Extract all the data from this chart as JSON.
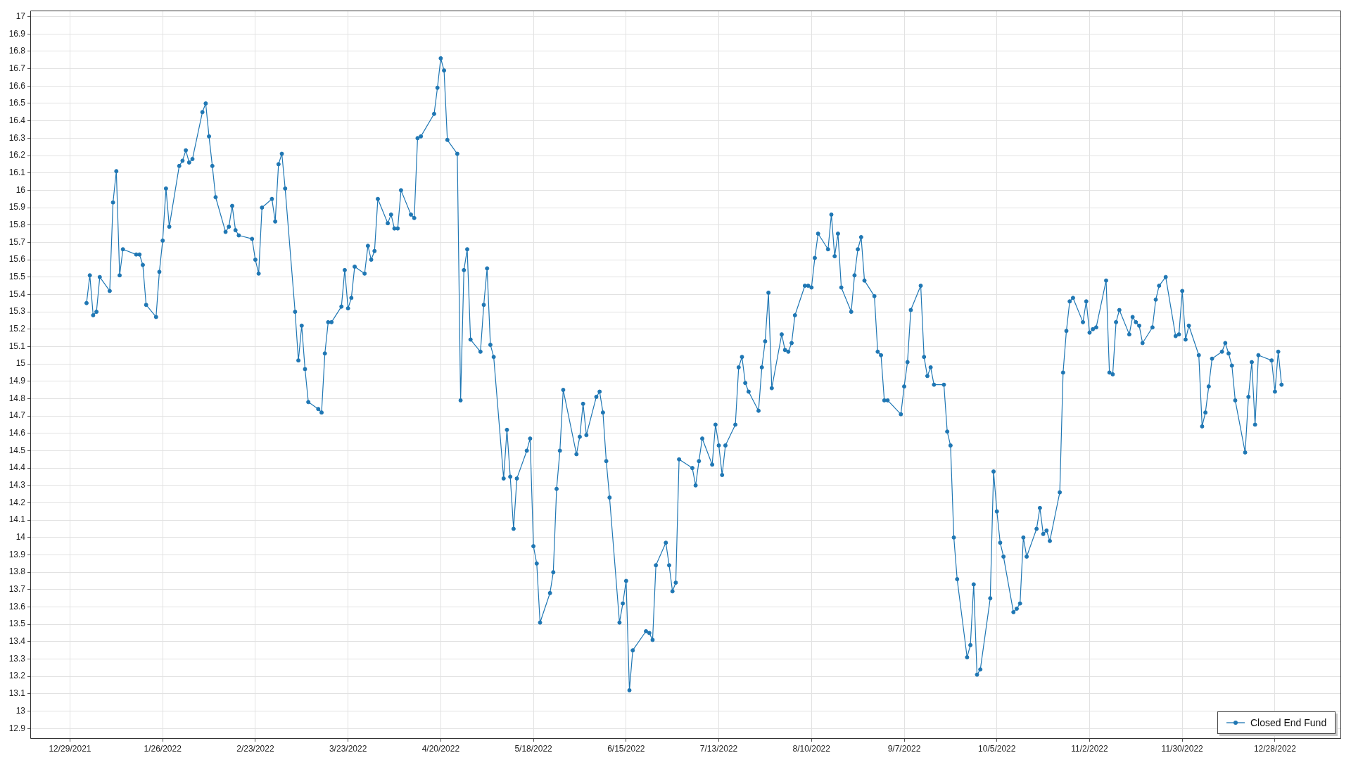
{
  "chart_data": {
    "type": "line",
    "x": [
      "2022-01-03",
      "2022-01-04",
      "2022-01-05",
      "2022-01-06",
      "2022-01-07",
      "2022-01-10",
      "2022-01-11",
      "2022-01-12",
      "2022-01-13",
      "2022-01-14",
      "2022-01-18",
      "2022-01-19",
      "2022-01-20",
      "2022-01-21",
      "2022-01-24",
      "2022-01-25",
      "2022-01-26",
      "2022-01-27",
      "2022-01-28",
      "2022-01-31",
      "2022-02-01",
      "2022-02-02",
      "2022-02-03",
      "2022-02-04",
      "2022-02-07",
      "2022-02-08",
      "2022-02-09",
      "2022-02-10",
      "2022-02-11",
      "2022-02-14",
      "2022-02-15",
      "2022-02-16",
      "2022-02-17",
      "2022-02-18",
      "2022-02-22",
      "2022-02-23",
      "2022-02-24",
      "2022-02-25",
      "2022-02-28",
      "2022-03-01",
      "2022-03-02",
      "2022-03-03",
      "2022-03-04",
      "2022-03-07",
      "2022-03-08",
      "2022-03-09",
      "2022-03-10",
      "2022-03-11",
      "2022-03-14",
      "2022-03-15",
      "2022-03-16",
      "2022-03-17",
      "2022-03-18",
      "2022-03-21",
      "2022-03-22",
      "2022-03-23",
      "2022-03-24",
      "2022-03-25",
      "2022-03-28",
      "2022-03-29",
      "2022-03-30",
      "2022-03-31",
      "2022-04-01",
      "2022-04-04",
      "2022-04-05",
      "2022-04-06",
      "2022-04-07",
      "2022-04-08",
      "2022-04-11",
      "2022-04-12",
      "2022-04-13",
      "2022-04-14",
      "2022-04-18",
      "2022-04-19",
      "2022-04-20",
      "2022-04-21",
      "2022-04-22",
      "2022-04-25",
      "2022-04-26",
      "2022-04-27",
      "2022-04-28",
      "2022-04-29",
      "2022-05-02",
      "2022-05-03",
      "2022-05-04",
      "2022-05-05",
      "2022-05-06",
      "2022-05-09",
      "2022-05-10",
      "2022-05-11",
      "2022-05-12",
      "2022-05-13",
      "2022-05-16",
      "2022-05-17",
      "2022-05-18",
      "2022-05-19",
      "2022-05-20",
      "2022-05-23",
      "2022-05-24",
      "2022-05-25",
      "2022-05-26",
      "2022-05-27",
      "2022-05-31",
      "2022-06-01",
      "2022-06-02",
      "2022-06-03",
      "2022-06-06",
      "2022-06-07",
      "2022-06-08",
      "2022-06-09",
      "2022-06-10",
      "2022-06-13",
      "2022-06-14",
      "2022-06-15",
      "2022-06-16",
      "2022-06-17",
      "2022-06-21",
      "2022-06-22",
      "2022-06-23",
      "2022-06-24",
      "2022-06-27",
      "2022-06-28",
      "2022-06-29",
      "2022-06-30",
      "2022-07-01",
      "2022-07-05",
      "2022-07-06",
      "2022-07-07",
      "2022-07-08",
      "2022-07-11",
      "2022-07-12",
      "2022-07-13",
      "2022-07-14",
      "2022-07-15",
      "2022-07-18",
      "2022-07-19",
      "2022-07-20",
      "2022-07-21",
      "2022-07-22",
      "2022-07-25",
      "2022-07-26",
      "2022-07-27",
      "2022-07-28",
      "2022-07-29",
      "2022-08-01",
      "2022-08-02",
      "2022-08-03",
      "2022-08-04",
      "2022-08-05",
      "2022-08-08",
      "2022-08-09",
      "2022-08-10",
      "2022-08-11",
      "2022-08-12",
      "2022-08-15",
      "2022-08-16",
      "2022-08-17",
      "2022-08-18",
      "2022-08-19",
      "2022-08-22",
      "2022-08-23",
      "2022-08-24",
      "2022-08-25",
      "2022-08-26",
      "2022-08-29",
      "2022-08-30",
      "2022-08-31",
      "2022-09-01",
      "2022-09-02",
      "2022-09-06",
      "2022-09-07",
      "2022-09-08",
      "2022-09-09",
      "2022-09-12",
      "2022-09-13",
      "2022-09-14",
      "2022-09-15",
      "2022-09-16",
      "2022-09-19",
      "2022-09-20",
      "2022-09-21",
      "2022-09-22",
      "2022-09-23",
      "2022-09-26",
      "2022-09-27",
      "2022-09-28",
      "2022-09-29",
      "2022-09-30",
      "2022-10-03",
      "2022-10-04",
      "2022-10-05",
      "2022-10-06",
      "2022-10-07",
      "2022-10-10",
      "2022-10-11",
      "2022-10-12",
      "2022-10-13",
      "2022-10-14",
      "2022-10-17",
      "2022-10-18",
      "2022-10-19",
      "2022-10-20",
      "2022-10-21",
      "2022-10-24",
      "2022-10-25",
      "2022-10-26",
      "2022-10-27",
      "2022-10-28",
      "2022-10-31",
      "2022-11-01",
      "2022-11-02",
      "2022-11-03",
      "2022-11-04",
      "2022-11-07",
      "2022-11-08",
      "2022-11-09",
      "2022-11-10",
      "2022-11-11",
      "2022-11-14",
      "2022-11-15",
      "2022-11-16",
      "2022-11-17",
      "2022-11-18",
      "2022-11-21",
      "2022-11-22",
      "2022-11-23",
      "2022-11-25",
      "2022-11-28",
      "2022-11-29",
      "2022-11-30",
      "2022-12-01",
      "2022-12-02",
      "2022-12-05",
      "2022-12-06",
      "2022-12-07",
      "2022-12-08",
      "2022-12-09",
      "2022-12-12",
      "2022-12-13",
      "2022-12-14",
      "2022-12-15",
      "2022-12-16",
      "2022-12-19",
      "2022-12-20",
      "2022-12-21",
      "2022-12-22",
      "2022-12-23",
      "2022-12-27",
      "2022-12-28",
      "2022-12-29",
      "2022-12-30"
    ],
    "series": [
      {
        "name": "Closed End Fund",
        "color": "#1f77b4",
        "values": [
          15.35,
          15.51,
          15.28,
          15.3,
          15.5,
          15.42,
          15.93,
          16.11,
          15.51,
          15.66,
          15.63,
          15.63,
          15.57,
          15.34,
          15.27,
          15.53,
          15.71,
          16.01,
          15.79,
          16.14,
          16.17,
          16.23,
          16.16,
          16.18,
          16.45,
          16.5,
          16.31,
          16.14,
          15.96,
          15.76,
          15.79,
          15.91,
          15.77,
          15.74,
          15.72,
          15.6,
          15.52,
          15.9,
          15.95,
          15.82,
          16.15,
          16.21,
          16.01,
          15.3,
          15.02,
          15.22,
          14.97,
          14.78,
          14.74,
          14.72,
          15.06,
          15.24,
          15.24,
          15.33,
          15.54,
          15.32,
          15.38,
          15.56,
          15.52,
          15.68,
          15.6,
          15.65,
          15.95,
          15.81,
          15.86,
          15.78,
          15.78,
          16.0,
          15.86,
          15.84,
          16.3,
          16.31,
          16.44,
          16.59,
          16.76,
          16.69,
          16.29,
          16.21,
          14.79,
          15.54,
          15.66,
          15.14,
          15.07,
          15.34,
          15.55,
          15.11,
          15.04,
          14.34,
          14.62,
          14.35,
          14.05,
          14.34,
          14.5,
          14.57,
          13.95,
          13.85,
          13.51,
          13.68,
          13.8,
          14.28,
          14.5,
          14.85,
          14.48,
          14.58,
          14.77,
          14.59,
          14.81,
          14.84,
          14.72,
          14.44,
          14.23,
          13.51,
          13.62,
          13.75,
          13.12,
          13.35,
          13.46,
          13.45,
          13.41,
          13.84,
          13.97,
          13.84,
          13.69,
          13.74,
          14.45,
          14.4,
          14.3,
          14.44,
          14.57,
          14.42,
          14.65,
          14.53,
          14.36,
          14.53,
          14.65,
          14.98,
          15.04,
          14.89,
          14.84,
          14.73,
          14.98,
          15.13,
          15.41,
          14.86,
          15.17,
          15.08,
          15.07,
          15.12,
          15.28,
          15.45,
          15.45,
          15.44,
          15.61,
          15.75,
          15.66,
          15.86,
          15.62,
          15.75,
          15.44,
          15.3,
          15.51,
          15.66,
          15.73,
          15.48,
          15.39,
          15.07,
          15.05,
          14.79,
          14.79,
          14.71,
          14.87,
          15.01,
          15.31,
          15.45,
          15.04,
          14.93,
          14.98,
          14.88,
          14.88,
          14.61,
          14.53,
          14.0,
          13.76,
          13.31,
          13.38,
          13.73,
          13.21,
          13.24,
          13.65,
          14.38,
          14.15,
          13.97,
          13.89,
          13.57,
          13.59,
          13.62,
          14.0,
          13.89,
          14.05,
          14.17,
          14.02,
          14.04,
          13.98,
          14.26,
          14.95,
          15.19,
          15.36,
          15.38,
          15.24,
          15.36,
          15.18,
          15.2,
          15.21,
          15.48,
          14.95,
          14.94,
          15.24,
          15.31,
          15.17,
          15.27,
          15.24,
          15.22,
          15.12,
          15.21,
          15.37,
          15.45,
          15.5,
          15.16,
          15.17,
          15.42,
          15.14,
          15.22,
          15.05,
          14.64,
          14.72,
          14.87,
          15.03,
          15.07,
          15.12,
          15.06,
          14.99,
          14.79,
          14.49,
          14.81,
          15.01,
          14.65,
          15.05,
          15.02,
          14.84,
          15.07,
          14.88
        ]
      }
    ],
    "xlim": [
      "2021-12-17",
      "2023-01-17"
    ],
    "xticks": [
      {
        "value": "2021-12-29",
        "label": "12/29/2021"
      },
      {
        "value": "2022-01-26",
        "label": "1/26/2022"
      },
      {
        "value": "2022-02-23",
        "label": "2/23/2022"
      },
      {
        "value": "2022-03-23",
        "label": "3/23/2022"
      },
      {
        "value": "2022-04-20",
        "label": "4/20/2022"
      },
      {
        "value": "2022-05-18",
        "label": "5/18/2022"
      },
      {
        "value": "2022-06-15",
        "label": "6/15/2022"
      },
      {
        "value": "2022-07-13",
        "label": "7/13/2022"
      },
      {
        "value": "2022-08-10",
        "label": "8/10/2022"
      },
      {
        "value": "2022-09-07",
        "label": "9/7/2022"
      },
      {
        "value": "2022-10-05",
        "label": "10/5/2022"
      },
      {
        "value": "2022-11-02",
        "label": "11/2/2022"
      },
      {
        "value": "2022-11-30",
        "label": "11/30/2022"
      },
      {
        "value": "2022-12-28",
        "label": "12/28/2022"
      }
    ],
    "ylim": [
      12.84,
      17.035
    ],
    "yticks": [
      12.9,
      13,
      13.1,
      13.2,
      13.3,
      13.4,
      13.5,
      13.6,
      13.7,
      13.8,
      13.9,
      14,
      14.1,
      14.2,
      14.3,
      14.4,
      14.5,
      14.6,
      14.7,
      14.8,
      14.9,
      15,
      15.1,
      15.2,
      15.3,
      15.4,
      15.5,
      15.6,
      15.7,
      15.8,
      15.9,
      16,
      16.1,
      16.2,
      16.3,
      16.4,
      16.5,
      16.6,
      16.7,
      16.8,
      16.9,
      17
    ],
    "grid": true,
    "legend": "bottom right",
    "marker": "circle",
    "line_style": "solid"
  }
}
